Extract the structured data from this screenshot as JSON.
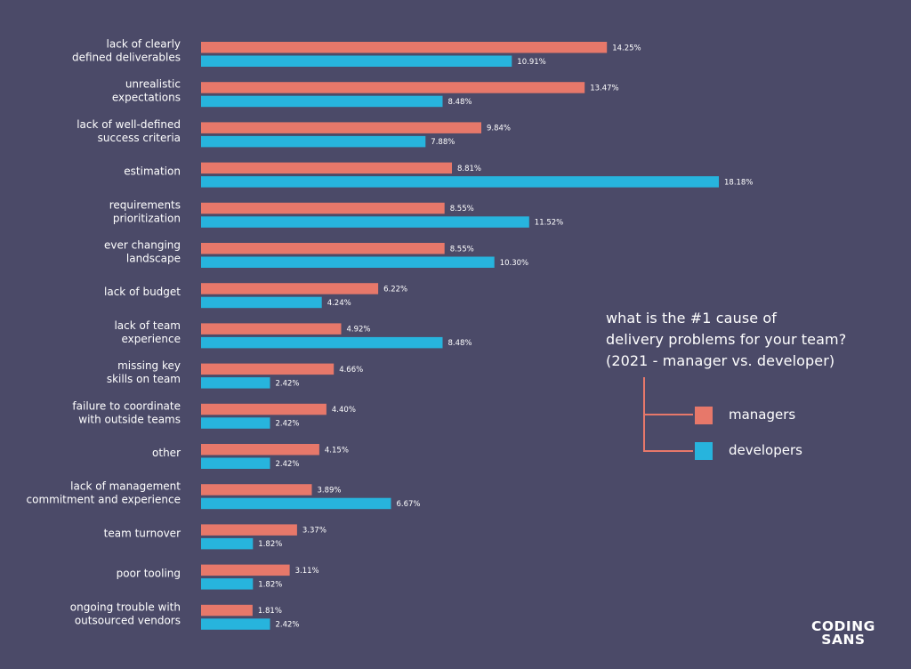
{
  "title_lines": [
    "what is the #1 cause of",
    "delivery problems for your team?",
    "(2021 - manager vs. developer)"
  ],
  "legend": {
    "managers": "managers",
    "developers": "developers"
  },
  "logo": {
    "line1": "CODING",
    "line2": "SANS"
  },
  "colors": {
    "background": "#4b4a68",
    "managers": "#e7786a",
    "developers": "#27b4dd"
  },
  "chart_data": {
    "type": "bar",
    "orientation": "horizontal",
    "title": "what is the #1 cause of delivery problems for your team? (2021 - manager vs. developer)",
    "categories": [
      [
        "lack of clearly",
        "defined deliverables"
      ],
      [
        "unrealistic",
        "expectations"
      ],
      [
        "lack of well-defined",
        "success criteria"
      ],
      [
        "estimation"
      ],
      [
        "requirements",
        "prioritization"
      ],
      [
        "ever changing",
        "landscape"
      ],
      [
        "lack of budget"
      ],
      [
        "lack of team",
        "experience"
      ],
      [
        "missing key",
        "skills on team"
      ],
      [
        "failure to coordinate",
        "with outside teams"
      ],
      [
        "other"
      ],
      [
        "lack of management",
        "commitment and experience"
      ],
      [
        "team turnover"
      ],
      [
        "poor tooling"
      ],
      [
        "ongoing trouble with",
        "outsourced vendors"
      ]
    ],
    "series": [
      {
        "name": "managers",
        "values": [
          14.25,
          13.47,
          9.84,
          8.81,
          8.55,
          8.55,
          6.22,
          4.92,
          4.66,
          4.4,
          4.15,
          3.89,
          3.37,
          3.11,
          1.81
        ],
        "labels": [
          "14.25%",
          "13.47%",
          "9.84%",
          "8.81%",
          "8.55%",
          "8.55%",
          "6.22%",
          "4.92%",
          "4.66%",
          "4.40%",
          "4.15%",
          "3.89%",
          "3.37%",
          "3.11%",
          "1.81%"
        ]
      },
      {
        "name": "developers",
        "values": [
          10.91,
          8.48,
          7.88,
          18.18,
          11.52,
          10.3,
          4.24,
          8.48,
          2.42,
          2.42,
          2.42,
          6.67,
          1.82,
          1.82,
          2.42
        ],
        "labels": [
          "10.91%",
          "8.48%",
          "7.88%",
          "18.18%",
          "11.52%",
          "10.30%",
          "4.24%",
          "8.48%",
          "2.42%",
          "2.42%",
          "2.42%",
          "6.67%",
          "1.82%",
          "1.82%",
          "2.42%"
        ]
      }
    ],
    "xlim": [
      0,
      18.18
    ],
    "grid": false,
    "legend_position": "right"
  }
}
